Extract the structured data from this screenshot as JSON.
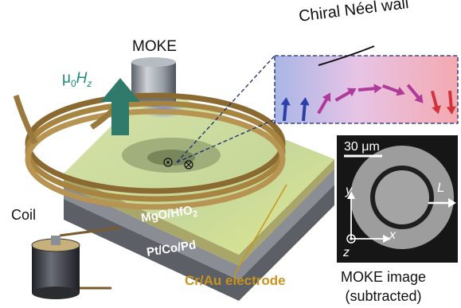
{
  "labels": {
    "moke": "MOKE",
    "field_prefix": "μ",
    "field_sub0": "0",
    "field_H": "H",
    "field_subz": "z",
    "chiral": "Chiral Néel wall",
    "coil": "Coil",
    "mgo_text": "MgO/HfO",
    "mgo_sub": "2",
    "ptcopd": "Pt/Co/Pd",
    "crau": "Cr/Au electrode",
    "moke_image_line1": "MOKE image",
    "moke_image_line2": "(subtracted)",
    "scale_bar": "30 μm",
    "axis_y": "y",
    "axis_x": "x",
    "axis_z": "z",
    "axis_L": "L"
  },
  "colors": {
    "coil": "#9a7a3c",
    "film_top": "#c9dba0",
    "electrode_label": "#c8941e",
    "field_arrow": "#2f7a6a",
    "field_label": "#1f8a78",
    "spin_blue": "#2c3fa8",
    "spin_magenta": "#b03a9a",
    "spin_red": "#d0343a"
  },
  "icons": {
    "moke_objective": "cylinder-lens-icon",
    "battery": "battery-cylinder-icon",
    "field_arrow": "up-arrow-icon"
  }
}
